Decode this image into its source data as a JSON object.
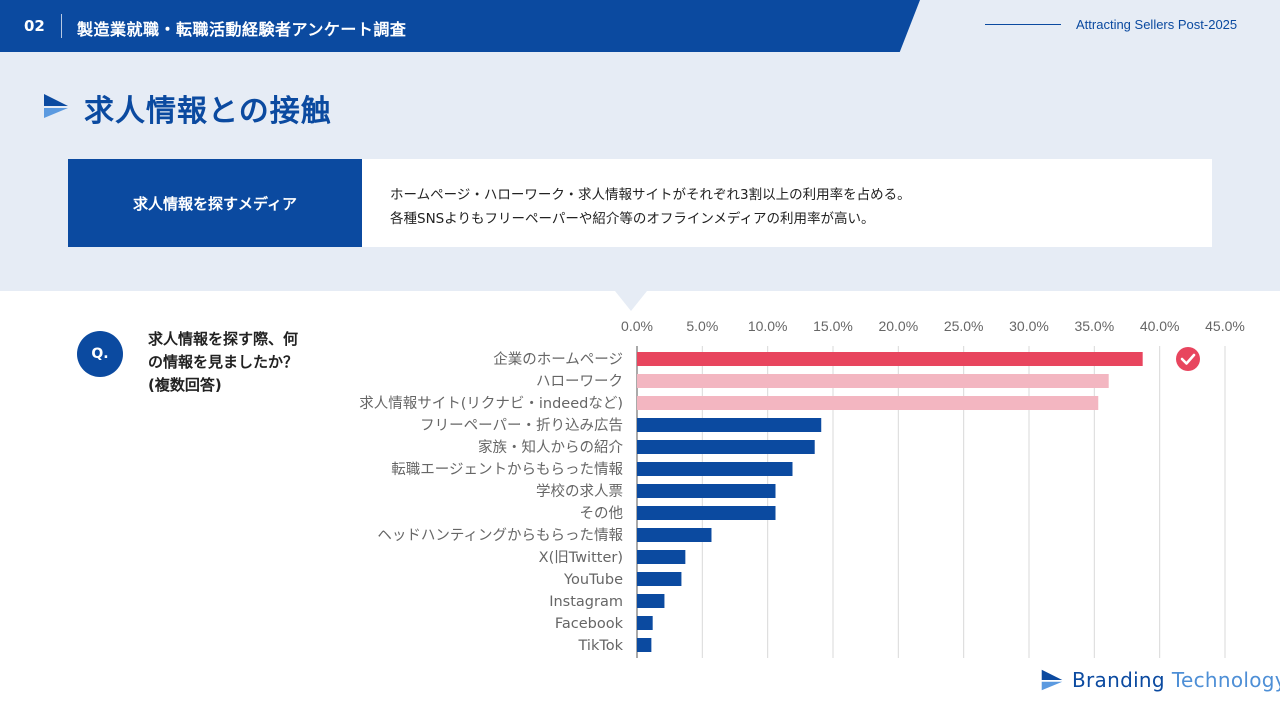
{
  "header": {
    "number": "02",
    "title": "製造業就職・転職活動経験者アンケート調査",
    "right_text": "Attracting Sellers Post-2025"
  },
  "page_title": "求人情報との接触",
  "summary": {
    "label": "求人情報を探すメディア",
    "lines": [
      "ホームページ・ハローワーク・求人情報サイトがそれぞれ3割以上の利用率を占める。",
      "各種SNSよりもフリーペーパーや紹介等のオフラインメディアの利用率が高い。"
    ]
  },
  "question": {
    "badge": "Q.",
    "lines": [
      "求人情報を探す際、何",
      "の情報を見ましたか？",
      "(複数回答)"
    ]
  },
  "brand": {
    "name1": "Branding",
    "name2": "Technology"
  },
  "colors": {
    "primary": "#0b4aa0",
    "highlight": "#e8455e",
    "highlight_light": "#f3b6c1",
    "background_light": "#e6ecf5"
  },
  "chart_data": {
    "type": "bar",
    "orientation": "horizontal",
    "categories": [
      "企業のホームページ",
      "ハローワーク",
      "求人情報サイト(リクナビ・indeedなど)",
      "フリーペーパー・折り込み広告",
      "家族・知人からの紹介",
      "転職エージェントからもらった情報",
      "学校の求人票",
      "その他",
      "ヘッドハンティングからもらった情報",
      "X(旧Twitter)",
      "YouTube",
      "Instagram",
      "Facebook",
      "TikTok"
    ],
    "values": [
      38.7,
      36.1,
      35.3,
      14.1,
      13.6,
      11.9,
      10.6,
      10.6,
      5.7,
      3.7,
      3.4,
      2.1,
      1.2,
      1.1
    ],
    "bar_colors": [
      "#e8455e",
      "#f3b6c1",
      "#f3b6c1",
      "#0b4aa0",
      "#0b4aa0",
      "#0b4aa0",
      "#0b4aa0",
      "#0b4aa0",
      "#0b4aa0",
      "#0b4aa0",
      "#0b4aa0",
      "#0b4aa0",
      "#0b4aa0",
      "#0b4aa0"
    ],
    "xticks": [
      "0.0%",
      "5.0%",
      "10.0%",
      "15.0%",
      "20.0%",
      "25.0%",
      "30.0%",
      "35.0%",
      "40.0%",
      "45.0%"
    ],
    "xlim": [
      0,
      45
    ],
    "grid": true,
    "axis_position": "top",
    "marker": "check-icon"
  }
}
